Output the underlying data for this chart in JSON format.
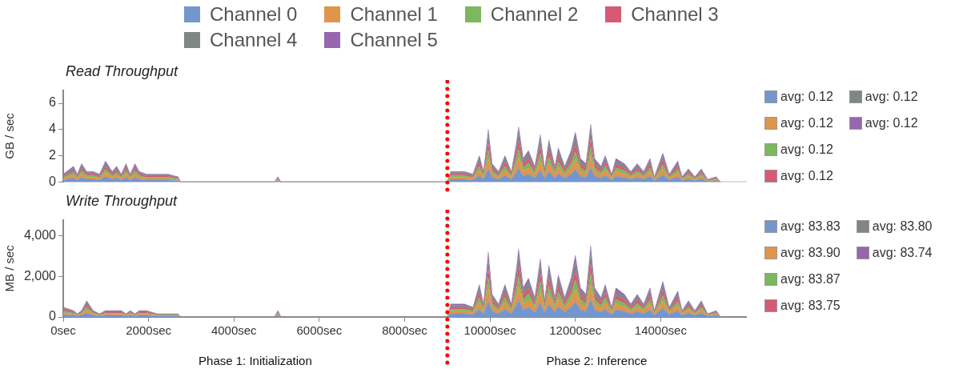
{
  "chart_data": [
    {
      "type": "area",
      "title": "Read Throughput",
      "ylabel": "GB / sec",
      "stacked": true,
      "legend": "top",
      "grid": false,
      "tick_labels": "y",
      "x": [
        0,
        240,
        330,
        430,
        550,
        700,
        850,
        990,
        1150,
        1250,
        1360,
        1470,
        1570,
        1680,
        1780,
        1950,
        2200,
        2450,
        2690,
        2750,
        4950,
        5030,
        5100,
        9000,
        9080,
        9400,
        9600,
        9750,
        9850,
        9960,
        10050,
        10200,
        10350,
        10500,
        10620,
        10670,
        10780,
        10900,
        11050,
        11180,
        11280,
        11380,
        11520,
        11600,
        11750,
        11900,
        12000,
        12120,
        12250,
        12360,
        12450,
        12600,
        12700,
        12850,
        12950,
        13150,
        13300,
        13450,
        13600,
        13750,
        13850,
        14050,
        14200,
        14400,
        14500,
        14650,
        14800,
        14950,
        15100,
        15300,
        15400
      ],
      "xlim": [
        0,
        16000
      ],
      "ylim": [
        0,
        7
      ],
      "yticks": [
        0,
        2,
        4,
        6
      ],
      "series": [
        {
          "name": "Channel 0",
          "color": "#7396cf",
          "values": [
            0.15,
            0.3,
            0.15,
            0.35,
            0.2,
            0.2,
            0.15,
            0.4,
            0.2,
            0.3,
            0.15,
            0.35,
            0.15,
            0.35,
            0.2,
            0.15,
            0.15,
            0.15,
            0.1,
            0,
            0,
            0.1,
            0,
            0,
            0.2,
            0.2,
            0.15,
            0.5,
            0.2,
            1,
            0.35,
            0.2,
            0.5,
            0.2,
            0.75,
            1.05,
            0.45,
            0.6,
            0.3,
            0.9,
            0.25,
            0.8,
            0.3,
            0.65,
            0.3,
            0.6,
            0.95,
            0.45,
            0.35,
            1.1,
            0.45,
            0.3,
            0.5,
            0.15,
            0.45,
            0.35,
            0.2,
            0.35,
            0.2,
            0.45,
            0.1,
            0.55,
            0.15,
            0.4,
            0.1,
            0.25,
            0.1,
            0.25,
            0.05,
            0.1,
            0
          ]
        },
        {
          "name": "Channel 1",
          "color": "#e0944c",
          "values": [
            0.12,
            0.24,
            0.12,
            0.28,
            0.16,
            0.16,
            0.12,
            0.32,
            0.16,
            0.24,
            0.12,
            0.28,
            0.12,
            0.28,
            0.16,
            0.12,
            0.12,
            0.12,
            0.08,
            0,
            0,
            0.08,
            0,
            0,
            0.16,
            0.16,
            0.12,
            0.4,
            0.16,
            0.8,
            0.28,
            0.16,
            0.4,
            0.16,
            0.6,
            0.84,
            0.36,
            0.48,
            0.24,
            0.72,
            0.2,
            0.64,
            0.24,
            0.52,
            0.24,
            0.48,
            0.76,
            0.36,
            0.28,
            0.88,
            0.36,
            0.24,
            0.4,
            0.12,
            0.36,
            0.28,
            0.16,
            0.28,
            0.16,
            0.36,
            0.08,
            0.44,
            0.12,
            0.32,
            0.08,
            0.2,
            0.08,
            0.2,
            0.04,
            0.08,
            0
          ]
        },
        {
          "name": "Channel 2",
          "color": "#7cb85c",
          "values": [
            0.09,
            0.18,
            0.09,
            0.21,
            0.12,
            0.12,
            0.09,
            0.24,
            0.12,
            0.18,
            0.09,
            0.21,
            0.09,
            0.21,
            0.12,
            0.09,
            0.09,
            0.09,
            0.06,
            0,
            0,
            0.06,
            0,
            0,
            0.12,
            0.12,
            0.09,
            0.3,
            0.12,
            0.6,
            0.21,
            0.12,
            0.3,
            0.12,
            0.45,
            0.63,
            0.27,
            0.36,
            0.18,
            0.54,
            0.15,
            0.48,
            0.18,
            0.39,
            0.18,
            0.36,
            0.57,
            0.27,
            0.21,
            0.66,
            0.27,
            0.18,
            0.3,
            0.09,
            0.27,
            0.21,
            0.12,
            0.21,
            0.12,
            0.27,
            0.06,
            0.33,
            0.09,
            0.24,
            0.06,
            0.15,
            0.06,
            0.15,
            0.03,
            0.06,
            0
          ]
        },
        {
          "name": "Channel 3",
          "color": "#d65a73",
          "values": [
            0.09,
            0.18,
            0.09,
            0.21,
            0.12,
            0.12,
            0.09,
            0.24,
            0.12,
            0.18,
            0.09,
            0.21,
            0.09,
            0.21,
            0.12,
            0.09,
            0.09,
            0.09,
            0.06,
            0,
            0,
            0.06,
            0,
            0,
            0.12,
            0.12,
            0.09,
            0.3,
            0.12,
            0.6,
            0.21,
            0.12,
            0.3,
            0.12,
            0.45,
            0.63,
            0.27,
            0.36,
            0.18,
            0.54,
            0.15,
            0.48,
            0.18,
            0.39,
            0.18,
            0.36,
            0.57,
            0.27,
            0.21,
            0.66,
            0.27,
            0.18,
            0.3,
            0.09,
            0.27,
            0.21,
            0.12,
            0.21,
            0.12,
            0.27,
            0.06,
            0.33,
            0.09,
            0.24,
            0.06,
            0.15,
            0.06,
            0.15,
            0.03,
            0.06,
            0
          ]
        },
        {
          "name": "Channel 4",
          "color": "#7f8686",
          "values": [
            0.09,
            0.18,
            0.09,
            0.21,
            0.12,
            0.12,
            0.09,
            0.24,
            0.12,
            0.18,
            0.09,
            0.21,
            0.09,
            0.21,
            0.12,
            0.09,
            0.09,
            0.09,
            0.06,
            0,
            0,
            0.06,
            0,
            0,
            0.12,
            0.12,
            0.09,
            0.3,
            0.12,
            0.6,
            0.21,
            0.12,
            0.3,
            0.12,
            0.45,
            0.63,
            0.27,
            0.36,
            0.18,
            0.54,
            0.15,
            0.48,
            0.18,
            0.39,
            0.18,
            0.36,
            0.57,
            0.27,
            0.21,
            0.66,
            0.27,
            0.18,
            0.3,
            0.09,
            0.27,
            0.21,
            0.12,
            0.21,
            0.12,
            0.27,
            0.06,
            0.33,
            0.09,
            0.24,
            0.06,
            0.15,
            0.06,
            0.15,
            0.03,
            0.06,
            0
          ]
        },
        {
          "name": "Channel 5",
          "color": "#9467ae",
          "values": [
            0.06,
            0.12,
            0.06,
            0.14,
            0.08,
            0.08,
            0.06,
            0.16,
            0.08,
            0.12,
            0.06,
            0.14,
            0.06,
            0.14,
            0.08,
            0.06,
            0.06,
            0.06,
            0.04,
            0,
            0,
            0.04,
            0,
            0,
            0.08,
            0.08,
            0.06,
            0.2,
            0.08,
            0.4,
            0.14,
            0.08,
            0.2,
            0.08,
            0.3,
            0.42,
            0.18,
            0.24,
            0.12,
            0.36,
            0.1,
            0.32,
            0.12,
            0.26,
            0.12,
            0.24,
            0.38,
            0.18,
            0.14,
            0.44,
            0.18,
            0.12,
            0.2,
            0.06,
            0.18,
            0.14,
            0.08,
            0.14,
            0.08,
            0.18,
            0.04,
            0.22,
            0.06,
            0.16,
            0.04,
            0.1,
            0.04,
            0.1,
            0.02,
            0.04,
            0
          ]
        }
      ],
      "ref_lines": [
        {
          "axis": "x",
          "value": 9000,
          "color": "#ff0000",
          "line_style": "dotted"
        }
      ],
      "annotations": [
        "avg: 0.12",
        "avg: 0.12",
        "avg: 0.12",
        "avg: 0.12",
        "avg: 0.12",
        "avg: 0.12"
      ]
    },
    {
      "type": "area",
      "title": "Write Throughput",
      "ylabel": "MB / sec",
      "stacked": true,
      "grid": false,
      "x": [
        0,
        240,
        330,
        430,
        550,
        700,
        850,
        990,
        1150,
        1250,
        1360,
        1470,
        1570,
        1680,
        1780,
        1950,
        2200,
        2450,
        2690,
        2750,
        4950,
        5030,
        5100,
        9000,
        9080,
        9400,
        9600,
        9750,
        9850,
        9960,
        10050,
        10200,
        10350,
        10500,
        10620,
        10670,
        10780,
        10900,
        11050,
        11180,
        11280,
        11380,
        11520,
        11600,
        11750,
        11900,
        12000,
        12120,
        12250,
        12360,
        12450,
        12600,
        12700,
        12850,
        12950,
        13150,
        13300,
        13450,
        13600,
        13750,
        13850,
        14050,
        14200,
        14400,
        14500,
        14650,
        14800,
        14950,
        15100,
        15300,
        15400
      ],
      "xlim": [
        0,
        16000
      ],
      "xticks": [
        {
          "value": 0,
          "label": "0sec"
        },
        {
          "value": 2000,
          "label": "2000sec"
        },
        {
          "value": 4000,
          "label": "4000sec"
        },
        {
          "value": 6000,
          "label": "6000sec"
        },
        {
          "value": 8000,
          "label": "8000sec"
        },
        {
          "value": 10000,
          "label": "10000sec"
        },
        {
          "value": 12000,
          "label": "12000sec"
        },
        {
          "value": 14000,
          "label": "14000sec"
        }
      ],
      "ylim": [
        0,
        4800
      ],
      "yticks": [
        0,
        {
          "value": 2000,
          "label": "2,000"
        },
        {
          "value": 4000,
          "label": "4,000"
        }
      ],
      "series": [
        {
          "color": "#7396cf",
          "values": [
            120,
            80,
            40,
            80,
            200,
            80,
            40,
            80,
            80,
            80,
            80,
            40,
            80,
            40,
            80,
            80,
            40,
            40,
            40,
            0,
            0,
            80,
            0,
            0,
            160,
            160,
            120,
            400,
            160,
            800,
            280,
            160,
            400,
            160,
            600,
            840,
            360,
            480,
            240,
            720,
            200,
            640,
            240,
            520,
            240,
            480,
            760,
            360,
            280,
            880,
            360,
            240,
            400,
            120,
            360,
            280,
            160,
            280,
            160,
            360,
            80,
            440,
            120,
            320,
            80,
            200,
            80,
            200,
            40,
            80,
            0
          ]
        },
        {
          "color": "#e0944c",
          "values": [
            96,
            64,
            32,
            64,
            160,
            64,
            32,
            64,
            64,
            64,
            64,
            32,
            64,
            32,
            64,
            64,
            32,
            32,
            32,
            0,
            0,
            64,
            0,
            0,
            128,
            128,
            96,
            320,
            128,
            640,
            224,
            128,
            320,
            128,
            480,
            672,
            288,
            384,
            192,
            576,
            160,
            512,
            192,
            416,
            192,
            384,
            608,
            288,
            224,
            704,
            288,
            192,
            320,
            96,
            288,
            224,
            128,
            224,
            128,
            288,
            64,
            352,
            96,
            256,
            64,
            160,
            64,
            160,
            32,
            64,
            0
          ]
        },
        {
          "color": "#7cb85c",
          "values": [
            72,
            48,
            24,
            48,
            120,
            48,
            24,
            48,
            48,
            48,
            48,
            24,
            48,
            24,
            48,
            48,
            24,
            24,
            24,
            0,
            0,
            48,
            0,
            0,
            96,
            96,
            72,
            240,
            96,
            480,
            168,
            96,
            240,
            96,
            360,
            504,
            216,
            288,
            144,
            432,
            120,
            384,
            144,
            312,
            144,
            288,
            456,
            216,
            168,
            528,
            216,
            144,
            240,
            72,
            216,
            168,
            96,
            168,
            96,
            216,
            48,
            264,
            72,
            192,
            48,
            120,
            48,
            120,
            24,
            48,
            0
          ]
        },
        {
          "color": "#d65a73",
          "values": [
            72,
            48,
            24,
            48,
            120,
            48,
            24,
            48,
            48,
            48,
            48,
            24,
            48,
            24,
            48,
            48,
            24,
            24,
            24,
            0,
            0,
            48,
            0,
            0,
            96,
            96,
            72,
            240,
            96,
            480,
            168,
            96,
            240,
            96,
            360,
            504,
            216,
            288,
            144,
            432,
            120,
            384,
            144,
            312,
            144,
            288,
            456,
            216,
            168,
            528,
            216,
            144,
            240,
            72,
            216,
            168,
            96,
            168,
            96,
            216,
            48,
            264,
            72,
            192,
            48,
            120,
            48,
            120,
            24,
            48,
            0
          ]
        },
        {
          "color": "#7f8686",
          "values": [
            72,
            48,
            24,
            48,
            120,
            48,
            24,
            48,
            48,
            48,
            48,
            24,
            48,
            24,
            48,
            48,
            24,
            24,
            24,
            0,
            0,
            48,
            0,
            0,
            96,
            96,
            72,
            240,
            96,
            480,
            168,
            96,
            240,
            96,
            360,
            504,
            216,
            288,
            144,
            432,
            120,
            384,
            144,
            312,
            144,
            288,
            456,
            216,
            168,
            528,
            216,
            144,
            240,
            72,
            216,
            168,
            96,
            168,
            96,
            216,
            48,
            264,
            72,
            192,
            48,
            120,
            48,
            120,
            24,
            48,
            0
          ]
        },
        {
          "color": "#9467ae",
          "values": [
            48,
            32,
            16,
            32,
            80,
            32,
            16,
            32,
            32,
            32,
            32,
            16,
            32,
            16,
            32,
            32,
            16,
            16,
            16,
            0,
            0,
            32,
            0,
            0,
            64,
            64,
            48,
            160,
            64,
            320,
            112,
            64,
            160,
            64,
            240,
            336,
            144,
            192,
            96,
            288,
            80,
            256,
            96,
            208,
            96,
            192,
            304,
            144,
            112,
            352,
            144,
            96,
            160,
            48,
            144,
            112,
            64,
            112,
            64,
            144,
            32,
            176,
            48,
            128,
            32,
            80,
            32,
            80,
            16,
            32,
            0
          ]
        }
      ],
      "ref_lines": [
        {
          "axis": "x",
          "value": 9000,
          "color": "#ff0000",
          "line_style": "dotted"
        }
      ],
      "annotations": [
        "avg: 83.83",
        "avg: 83.90",
        "avg: 83.87",
        "avg: 83.75",
        "avg: 83.80",
        "avg: 83.74",
        "Phase 1: Initialization",
        "Phase 2: Inference"
      ]
    }
  ]
}
